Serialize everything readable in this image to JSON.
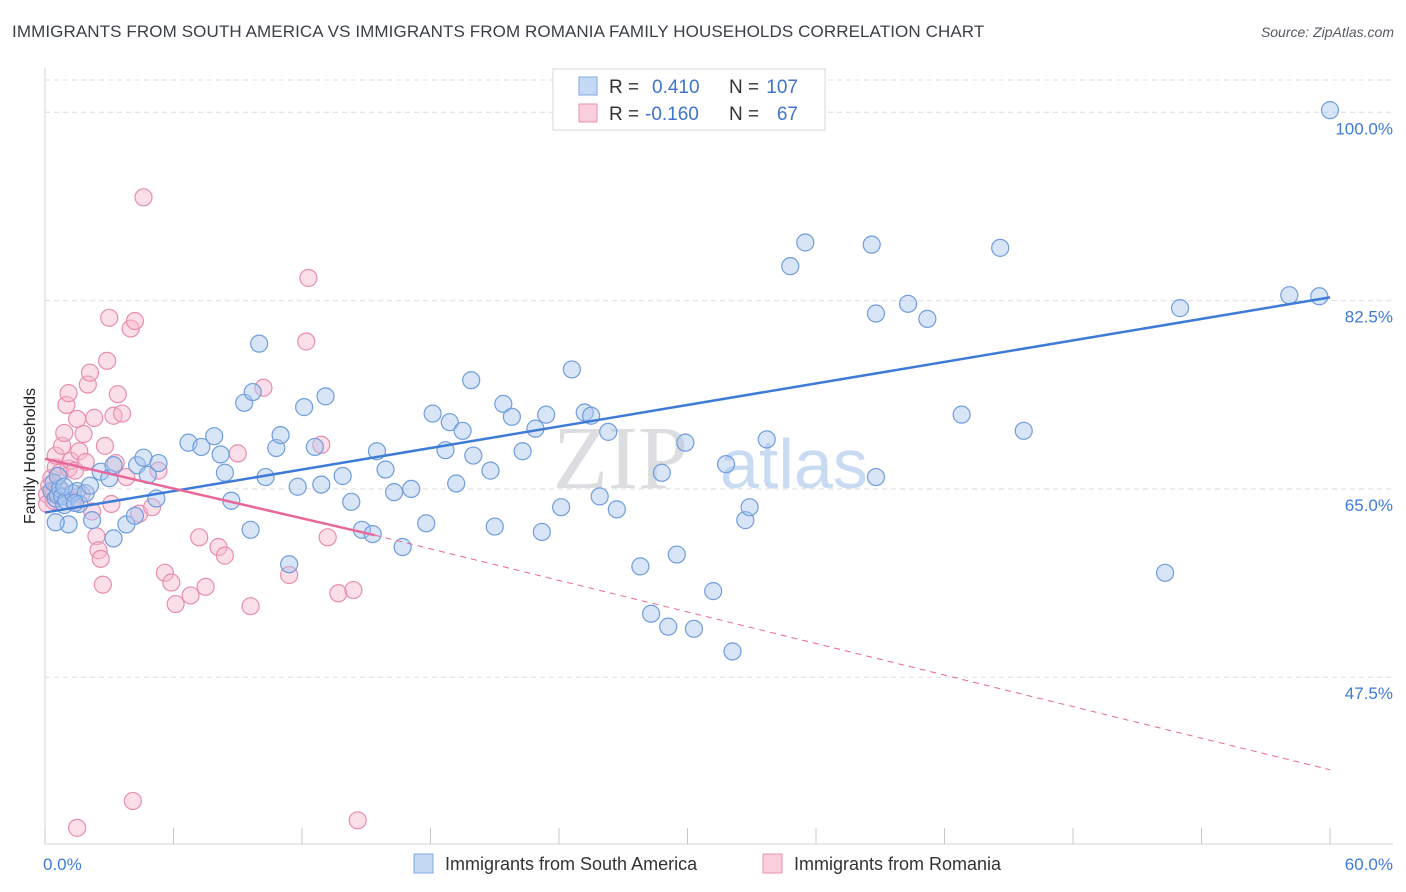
{
  "header": {
    "title": "IMMIGRANTS FROM SOUTH AMERICA VS IMMIGRANTS FROM ROMANIA FAMILY HOUSEHOLDS CORRELATION CHART",
    "source": "Source: ZipAtlas.com"
  },
  "watermark": {
    "zip": "ZIP",
    "atlas": "atlas"
  },
  "colors": {
    "blue": "#3e7bd6",
    "blue_fill": "#a9c6ee",
    "pink": "#e8689a",
    "pink_fill": "#f7b7cc",
    "grid": "#d9dde3"
  },
  "legend": {
    "r_label": "R =",
    "n_label": "N =",
    "series": [
      {
        "r": "0.410",
        "n": "107"
      },
      {
        "r": "-0.160",
        "n": "67"
      }
    ]
  },
  "chart_data": {
    "type": "scatter",
    "title": "IMMIGRANTS FROM SOUTH AMERICA VS IMMIGRANTS FROM ROMANIA FAMILY HOUSEHOLDS CORRELATION CHART",
    "xlabel": "",
    "ylabel": "Family Households",
    "xlim": [
      0,
      60
    ],
    "ylim": [
      32,
      103
    ],
    "x_tick_labels": [
      "0.0%",
      "60.0%"
    ],
    "y_ticks": [
      {
        "value": 47.5,
        "label": "47.5%"
      },
      {
        "value": 65.0,
        "label": "65.0%"
      },
      {
        "value": 82.5,
        "label": "82.5%"
      },
      {
        "value": 100.0,
        "label": "100.0%"
      }
    ],
    "series": [
      {
        "name": "Immigrants from South America",
        "color": "#3e7bd6",
        "R": 0.41,
        "N": 107,
        "trend": {
          "x0": 0,
          "y0": 62.8,
          "x1": 60,
          "y1": 82.8,
          "dashed_extension": false
        },
        "points": [
          [
            0.3,
            64.8
          ],
          [
            0.4,
            65.6
          ],
          [
            0.5,
            64.1
          ],
          [
            0.6,
            64.4
          ],
          [
            0.7,
            65.0
          ],
          [
            0.8,
            64.3
          ],
          [
            0.9,
            63.5
          ],
          [
            1.0,
            63.9
          ],
          [
            0.6,
            66.2
          ],
          [
            1.1,
            61.7
          ],
          [
            1.3,
            64.6
          ],
          [
            1.5,
            64.8
          ],
          [
            1.6,
            63.6
          ],
          [
            1.9,
            64.6
          ],
          [
            2.2,
            62.1
          ],
          [
            2.6,
            66.6
          ],
          [
            3.0,
            66.0
          ],
          [
            3.2,
            60.4
          ],
          [
            3.8,
            61.7
          ],
          [
            4.2,
            62.5
          ],
          [
            4.3,
            67.2
          ],
          [
            4.6,
            67.9
          ],
          [
            4.8,
            66.3
          ],
          [
            5.2,
            64.1
          ],
          [
            5.3,
            67.4
          ],
          [
            6.7,
            69.3
          ],
          [
            7.3,
            68.9
          ],
          [
            7.9,
            69.9
          ],
          [
            8.4,
            66.5
          ],
          [
            8.2,
            68.2
          ],
          [
            8.7,
            63.9
          ],
          [
            9.3,
            73.0
          ],
          [
            9.6,
            61.2
          ],
          [
            9.7,
            74.0
          ],
          [
            10.0,
            78.5
          ],
          [
            10.3,
            66.1
          ],
          [
            10.8,
            68.8
          ],
          [
            11.0,
            70.0
          ],
          [
            11.4,
            58.0
          ],
          [
            11.8,
            65.2
          ],
          [
            12.1,
            72.6
          ],
          [
            12.6,
            68.9
          ],
          [
            12.9,
            65.4
          ],
          [
            13.1,
            73.6
          ],
          [
            13.9,
            66.2
          ],
          [
            14.3,
            63.8
          ],
          [
            14.8,
            61.2
          ],
          [
            15.3,
            60.8
          ],
          [
            15.5,
            68.5
          ],
          [
            15.9,
            66.8
          ],
          [
            16.3,
            64.7
          ],
          [
            16.7,
            59.6
          ],
          [
            17.1,
            65.0
          ],
          [
            17.8,
            61.8
          ],
          [
            18.1,
            72.0
          ],
          [
            18.7,
            68.6
          ],
          [
            18.9,
            71.2
          ],
          [
            19.2,
            65.5
          ],
          [
            19.5,
            70.4
          ],
          [
            19.9,
            75.1
          ],
          [
            20.0,
            68.1
          ],
          [
            20.8,
            66.7
          ],
          [
            21.0,
            61.5
          ],
          [
            21.4,
            72.9
          ],
          [
            21.8,
            71.7
          ],
          [
            22.3,
            68.5
          ],
          [
            22.9,
            70.6
          ],
          [
            23.2,
            61.0
          ],
          [
            23.4,
            71.9
          ],
          [
            24.1,
            63.3
          ],
          [
            24.6,
            76.1
          ],
          [
            25.2,
            72.1
          ],
          [
            25.5,
            71.8
          ],
          [
            25.9,
            64.3
          ],
          [
            26.3,
            70.3
          ],
          [
            26.7,
            63.1
          ],
          [
            27.8,
            57.8
          ],
          [
            28.3,
            53.4
          ],
          [
            28.8,
            66.5
          ],
          [
            29.1,
            52.2
          ],
          [
            29.5,
            58.9
          ],
          [
            29.9,
            69.3
          ],
          [
            30.3,
            52.0
          ],
          [
            31.2,
            55.5
          ],
          [
            31.8,
            67.3
          ],
          [
            32.1,
            49.9
          ],
          [
            32.7,
            62.1
          ],
          [
            32.9,
            63.3
          ],
          [
            33.7,
            69.6
          ],
          [
            35.5,
            87.9
          ],
          [
            34.8,
            85.7
          ],
          [
            38.6,
            87.7
          ],
          [
            38.8,
            66.1
          ],
          [
            38.8,
            81.3
          ],
          [
            40.3,
            82.2
          ],
          [
            41.2,
            80.8
          ],
          [
            42.8,
            71.9
          ],
          [
            44.6,
            87.4
          ],
          [
            45.7,
            70.4
          ],
          [
            52.3,
            57.2
          ],
          [
            53.0,
            81.8
          ],
          [
            60.0,
            100.2
          ],
          [
            58.1,
            83.0
          ],
          [
            59.5,
            82.9
          ],
          [
            3.2,
            67.2
          ],
          [
            2.1,
            65.3
          ],
          [
            1.4,
            63.7
          ],
          [
            0.9,
            65.2
          ],
          [
            0.5,
            61.9
          ]
        ]
      },
      {
        "name": "Immigrants from Romania",
        "color": "#e8689a",
        "R": -0.16,
        "N": 67,
        "trend": {
          "x0": 0,
          "y0": 67.8,
          "x1": 15.4,
          "y1": 60.7,
          "dash_x1": 60,
          "dash_y1": 38.9
        },
        "points": [
          [
            0.1,
            64.5
          ],
          [
            0.1,
            63.6
          ],
          [
            0.2,
            65.3
          ],
          [
            0.3,
            66.0
          ],
          [
            0.4,
            64.6
          ],
          [
            0.4,
            63.9
          ],
          [
            0.5,
            67.0
          ],
          [
            0.5,
            68.1
          ],
          [
            0.6,
            65.1
          ],
          [
            0.7,
            66.5
          ],
          [
            0.8,
            69.0
          ],
          [
            0.9,
            70.2
          ],
          [
            1.0,
            72.8
          ],
          [
            1.1,
            73.9
          ],
          [
            1.1,
            66.9
          ],
          [
            1.2,
            67.6
          ],
          [
            1.3,
            63.9
          ],
          [
            1.4,
            66.7
          ],
          [
            1.5,
            71.5
          ],
          [
            1.6,
            68.5
          ],
          [
            1.7,
            64.5
          ],
          [
            1.8,
            70.1
          ],
          [
            1.9,
            67.5
          ],
          [
            2.0,
            74.7
          ],
          [
            2.1,
            75.8
          ],
          [
            2.2,
            62.9
          ],
          [
            2.3,
            71.6
          ],
          [
            2.4,
            60.6
          ],
          [
            2.5,
            59.3
          ],
          [
            2.6,
            58.5
          ],
          [
            2.7,
            56.1
          ],
          [
            2.9,
            76.9
          ],
          [
            3.0,
            80.9
          ],
          [
            3.2,
            71.8
          ],
          [
            3.3,
            67.4
          ],
          [
            3.4,
            73.8
          ],
          [
            3.6,
            72.0
          ],
          [
            3.8,
            66.1
          ],
          [
            4.0,
            79.9
          ],
          [
            4.2,
            80.6
          ],
          [
            4.4,
            62.7
          ],
          [
            4.6,
            92.1
          ],
          [
            5.0,
            63.3
          ],
          [
            5.3,
            66.7
          ],
          [
            5.6,
            57.2
          ],
          [
            5.9,
            56.3
          ],
          [
            6.1,
            54.3
          ],
          [
            6.8,
            55.1
          ],
          [
            7.2,
            60.5
          ],
          [
            7.5,
            55.9
          ],
          [
            8.1,
            59.6
          ],
          [
            8.4,
            58.8
          ],
          [
            9.0,
            68.3
          ],
          [
            9.6,
            54.1
          ],
          [
            10.2,
            74.4
          ],
          [
            11.4,
            57.0
          ],
          [
            12.2,
            78.7
          ],
          [
            12.3,
            84.6
          ],
          [
            12.9,
            69.1
          ],
          [
            13.2,
            60.5
          ],
          [
            13.7,
            55.3
          ],
          [
            14.4,
            55.6
          ],
          [
            2.8,
            69.0
          ],
          [
            3.1,
            63.6
          ],
          [
            1.5,
            33.5
          ],
          [
            4.1,
            36.0
          ],
          [
            14.6,
            34.2
          ]
        ]
      }
    ]
  },
  "bottom_legend": {
    "items": [
      "Immigrants from South America",
      "Immigrants from Romania"
    ]
  }
}
